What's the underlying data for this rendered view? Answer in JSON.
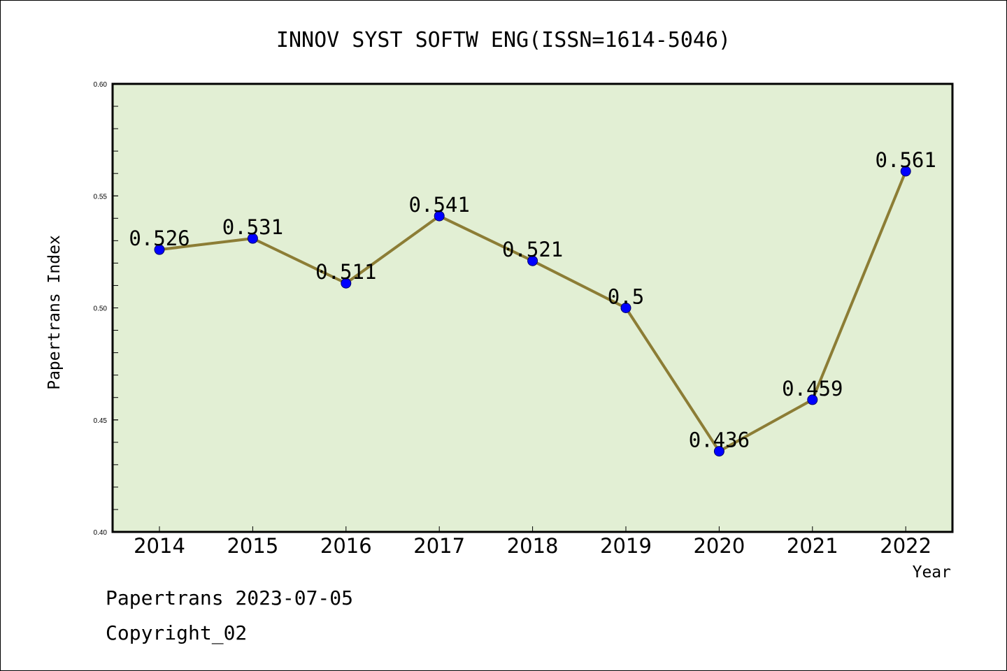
{
  "chart_data": {
    "type": "line",
    "title": "INNOV SYST SOFTW ENG(ISSN=1614-5046)",
    "xlabel": "Year",
    "ylabel": "Papertrans Index",
    "categories": [
      "2014",
      "2015",
      "2016",
      "2017",
      "2018",
      "2019",
      "2020",
      "2021",
      "2022"
    ],
    "values": [
      0.526,
      0.531,
      0.511,
      0.541,
      0.521,
      0.5,
      0.436,
      0.459,
      0.561
    ],
    "data_labels": [
      "0.526",
      "0.531",
      "0.511",
      "0.541",
      "0.521",
      "0.5",
      "0.436",
      "0.459",
      "0.561"
    ],
    "ylim": [
      0.4,
      0.6
    ],
    "yticks": [
      "0.40",
      "0.45",
      "0.50",
      "0.55",
      "0.60"
    ],
    "grid": false,
    "colors": {
      "plot_background": "#e2efd4",
      "line": "#8c7d35",
      "marker": "#0000ff"
    }
  },
  "footer": {
    "line1": "Papertrans 2023-07-05",
    "line2": "Copyright_02"
  }
}
